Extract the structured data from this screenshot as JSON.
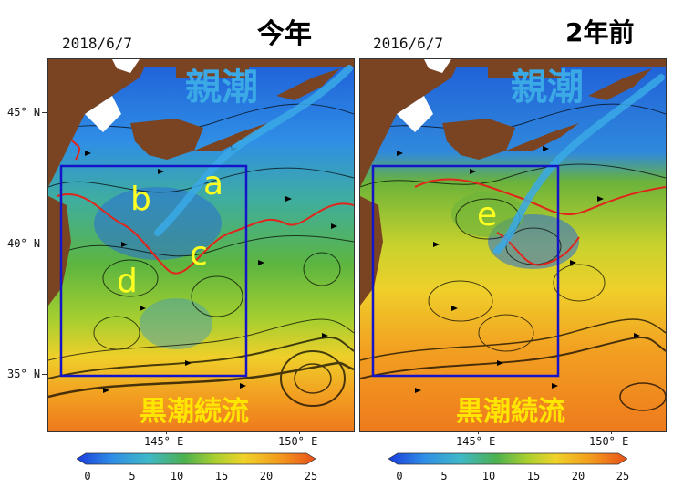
{
  "left": {
    "date": "2018/6/7",
    "title": "今年",
    "current_label": "親潮",
    "stream_label": "黒潮続流",
    "regions": [
      "a",
      "b",
      "c",
      "d"
    ]
  },
  "right": {
    "date": "2016/6/7",
    "title": "2年前",
    "current_label": "親潮",
    "stream_label": "黒潮続流",
    "regions": [
      "e"
    ]
  },
  "axes": {
    "lat_labels": [
      "45° N",
      "40° N",
      "35° N"
    ],
    "lon_labels": [
      "145° E",
      "150° E"
    ]
  },
  "colorbar": {
    "ticks": [
      "0",
      "5",
      "10",
      "15",
      "20",
      "25"
    ],
    "colors": [
      "#1a3cdc",
      "#2f8ee6",
      "#3fb8c8",
      "#4cb050",
      "#a9cf2f",
      "#f0d22a",
      "#f39a1d",
      "#e8501a"
    ]
  },
  "colors": {
    "land": "#7a4322",
    "box": "#1414c8",
    "contour": "#e0261c",
    "oyashio_arrow": "#3aa9e6",
    "region_text": "#ffff22",
    "stream_text": "#ffe600"
  }
}
